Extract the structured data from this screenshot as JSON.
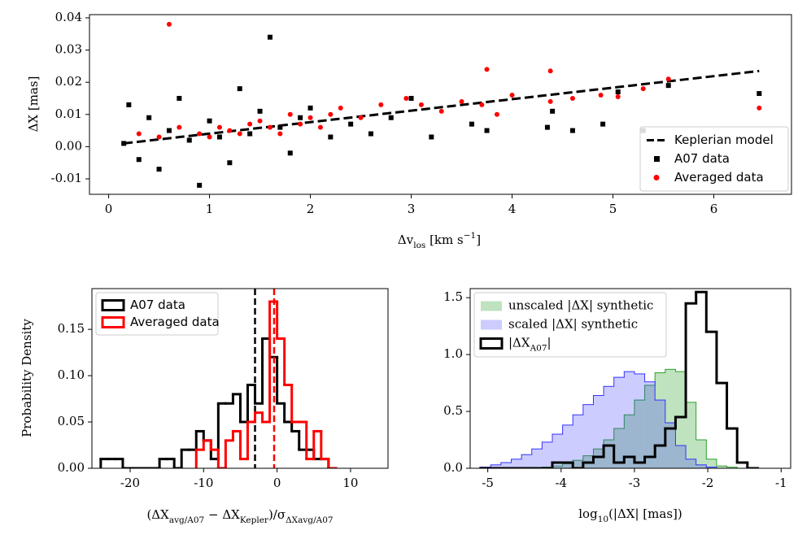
{
  "chart_data": [
    {
      "type": "scatter",
      "x_label": [
        "Δv",
        "los",
        " [km s",
        "−1",
        "]"
      ],
      "y_label": "ΔX [mas]",
      "xlim": [
        -0.19,
        6.77
      ],
      "ylim": [
        -0.0148,
        0.041
      ],
      "xticks": [
        0,
        1,
        2,
        3,
        4,
        5,
        6
      ],
      "yticks": [
        -0.01,
        {
          "value": 0,
          "label": "0.00"
        },
        0.01,
        0.02,
        0.03,
        0.04
      ],
      "legend": "lower right",
      "series": [
        {
          "name": "Keplerian model",
          "color": "#000000",
          "marker": "line",
          "linestyle": "dashed",
          "x": [
            0.15,
            6.45
          ],
          "y": [
            0.001,
            0.0235
          ]
        },
        {
          "name": "A07 data",
          "color": "#000000",
          "marker": "square",
          "x": [
            0.15,
            0.2,
            0.3,
            0.4,
            0.5,
            0.6,
            0.7,
            0.8,
            0.9,
            1.0,
            1.1,
            1.2,
            1.3,
            1.4,
            1.5,
            1.6,
            1.7,
            1.8,
            1.9,
            2.0,
            2.2,
            2.4,
            2.6,
            2.8,
            3.0,
            3.2,
            3.6,
            3.75,
            4.35,
            4.4,
            4.6,
            4.9,
            5.05,
            5.3,
            5.55,
            6.45
          ],
          "y": [
            0.001,
            0.013,
            -0.004,
            0.009,
            -0.007,
            0.005,
            0.015,
            0.002,
            -0.012,
            0.008,
            0.003,
            -0.005,
            0.018,
            0.004,
            0.011,
            0.034,
            0.006,
            -0.002,
            0.009,
            0.012,
            0.003,
            0.007,
            0.004,
            0.009,
            0.015,
            0.003,
            0.007,
            0.005,
            0.006,
            0.011,
            0.005,
            0.007,
            0.017,
            0.005,
            0.019,
            0.0165
          ]
        },
        {
          "name": "Averaged data",
          "color": "#ff0000",
          "marker": "circle",
          "x": [
            0.3,
            0.5,
            0.6,
            0.7,
            0.9,
            1.0,
            1.1,
            1.2,
            1.3,
            1.4,
            1.5,
            1.6,
            1.7,
            1.8,
            1.9,
            2.0,
            2.1,
            2.2,
            2.3,
            2.5,
            2.7,
            2.95,
            3.1,
            3.3,
            3.5,
            3.7,
            3.75,
            3.85,
            4.0,
            4.38,
            4.38,
            4.6,
            4.88,
            5.05,
            5.3,
            5.55,
            6.45
          ],
          "y": [
            0.004,
            0.003,
            0.038,
            0.006,
            0.004,
            0.003,
            0.006,
            0.005,
            0.004,
            0.007,
            0.008,
            0.006,
            0.004,
            0.01,
            0.007,
            0.009,
            0.006,
            0.01,
            0.012,
            0.009,
            0.013,
            0.015,
            0.013,
            0.011,
            0.014,
            0.013,
            0.024,
            0.01,
            0.016,
            0.0235,
            0.014,
            0.015,
            0.016,
            0.0155,
            0.018,
            0.021,
            0.012
          ]
        }
      ]
    },
    {
      "type": "histogram",
      "x_label": [
        "(ΔX",
        "avg/A07",
        " − ΔX",
        "Kepler",
        ")/σ",
        "ΔX",
        "avg/A07"
      ],
      "y_label": "Probability Density",
      "xlim": [
        -25.2,
        15.1
      ],
      "ylim": [
        0,
        0.194
      ],
      "xticks": [
        -20,
        -10,
        0,
        10
      ],
      "yticks": [
        {
          "value": 0,
          "label": "0.00"
        },
        0.05,
        {
          "value": 0.1,
          "label": "0.10"
        },
        0.15
      ],
      "legend": "upper left",
      "series": [
        {
          "name": "A07 data",
          "color": "#000000",
          "fill": false,
          "mean": -3,
          "bins": [
            -24,
            -23,
            -22,
            -21,
            -20,
            -19,
            -18,
            -17,
            -16,
            -15,
            -14,
            -13,
            -12,
            -11,
            -10,
            -9,
            -8,
            -7,
            -6,
            -5,
            -4,
            -3,
            -2,
            -1,
            0,
            1,
            2,
            3,
            4,
            5,
            6,
            7,
            8
          ],
          "values": [
            0.01,
            0.01,
            0.01,
            0,
            0,
            0,
            0,
            0,
            0.01,
            0.01,
            0,
            0.02,
            0.02,
            0.04,
            0.03,
            0.01,
            0.07,
            0.07,
            0.08,
            0.05,
            0.09,
            0.07,
            0.14,
            0.12,
            0.07,
            0.05,
            0.04,
            0.02,
            0.02,
            0.01,
            0.01,
            0
          ]
        },
        {
          "name": "Averaged data",
          "color": "#ff0000",
          "fill": false,
          "mean": -0.4,
          "bins": [
            -11,
            -10,
            -9,
            -8,
            -7,
            -6,
            -5,
            -4,
            -3,
            -2,
            -1,
            0,
            1,
            2,
            3,
            4,
            5,
            6,
            7,
            8
          ],
          "values": [
            0.02,
            0.03,
            0.02,
            0,
            0.03,
            0.04,
            0.01,
            0.05,
            0.06,
            0.05,
            0.18,
            0.14,
            0.09,
            0.05,
            0.05,
            0.01,
            0.04,
            0.01,
            0
          ]
        }
      ]
    },
    {
      "type": "histogram",
      "x_label": [
        "log",
        "10",
        "(|ΔX| [mas])"
      ],
      "xlim": [
        -5.24,
        -0.87
      ],
      "ylim": [
        0,
        1.58
      ],
      "xticks": [
        -5,
        -4,
        -3,
        -2,
        -1
      ],
      "yticks": [
        {
          "value": 0,
          "label": "0.0"
        },
        0.5,
        {
          "value": 1,
          "label": "1.0"
        },
        1.5
      ],
      "legend": "upper left",
      "series": [
        {
          "name": "unscaled |ΔX| synthetic",
          "color": "#2ca02c",
          "fill": true,
          "alpha": 0.3,
          "bins": [
            -5.1,
            -4.96,
            -4.82,
            -4.68,
            -4.54,
            -4.4,
            -4.26,
            -4.12,
            -3.98,
            -3.84,
            -3.7,
            -3.56,
            -3.42,
            -3.28,
            -3.14,
            -3.0,
            -2.86,
            -2.72,
            -2.58,
            -2.44,
            -2.3,
            -2.16,
            -2.02,
            -1.88,
            -1.74,
            -1.6,
            -1.46,
            -1.32
          ],
          "values": [
            0,
            0,
            0,
            0,
            0,
            0,
            0.01,
            0.02,
            0.04,
            0.07,
            0.11,
            0.17,
            0.25,
            0.35,
            0.47,
            0.6,
            0.73,
            0.84,
            0.87,
            0.85,
            0.58,
            0.25,
            0.08,
            0.02,
            0.01,
            0,
            0
          ]
        },
        {
          "name": "scaled |ΔX| synthetic",
          "color": "#3333ff",
          "fill": true,
          "alpha": 0.25,
          "bins": [
            -5.1,
            -4.96,
            -4.82,
            -4.68,
            -4.54,
            -4.4,
            -4.26,
            -4.12,
            -3.98,
            -3.84,
            -3.7,
            -3.56,
            -3.42,
            -3.28,
            -3.14,
            -3.0,
            -2.86,
            -2.72,
            -2.58,
            -2.44,
            -2.3,
            -2.16,
            -2.02,
            -1.88,
            -1.74,
            -1.6,
            -1.46,
            -1.32
          ],
          "values": [
            0.01,
            0.03,
            0.05,
            0.08,
            0.12,
            0.17,
            0.23,
            0.3,
            0.38,
            0.47,
            0.56,
            0.64,
            0.72,
            0.8,
            0.85,
            0.83,
            0.76,
            0.6,
            0.4,
            0.2,
            0.08,
            0.03,
            0.01,
            0,
            0,
            0,
            0
          ]
        },
        {
          "name": [
            "|ΔX",
            "A07",
            "|"
          ],
          "color": "#000000",
          "fill": false,
          "bins": [
            -5.1,
            -4.96,
            -4.82,
            -4.68,
            -4.54,
            -4.4,
            -4.26,
            -4.12,
            -3.98,
            -3.84,
            -3.7,
            -3.56,
            -3.42,
            -3.28,
            -3.14,
            -3.0,
            -2.86,
            -2.72,
            -2.58,
            -2.44,
            -2.3,
            -2.16,
            -2.02,
            -1.88,
            -1.74,
            -1.6,
            -1.46,
            -1.32
          ],
          "values": [
            0,
            0,
            0,
            0,
            0,
            0,
            0,
            0.05,
            0.05,
            0,
            0.05,
            0.1,
            0.2,
            0.05,
            0.1,
            0.05,
            0.1,
            0.2,
            0.35,
            0.45,
            1.45,
            1.55,
            1.2,
            0.75,
            0.35,
            0.05,
            0
          ]
        }
      ]
    }
  ]
}
